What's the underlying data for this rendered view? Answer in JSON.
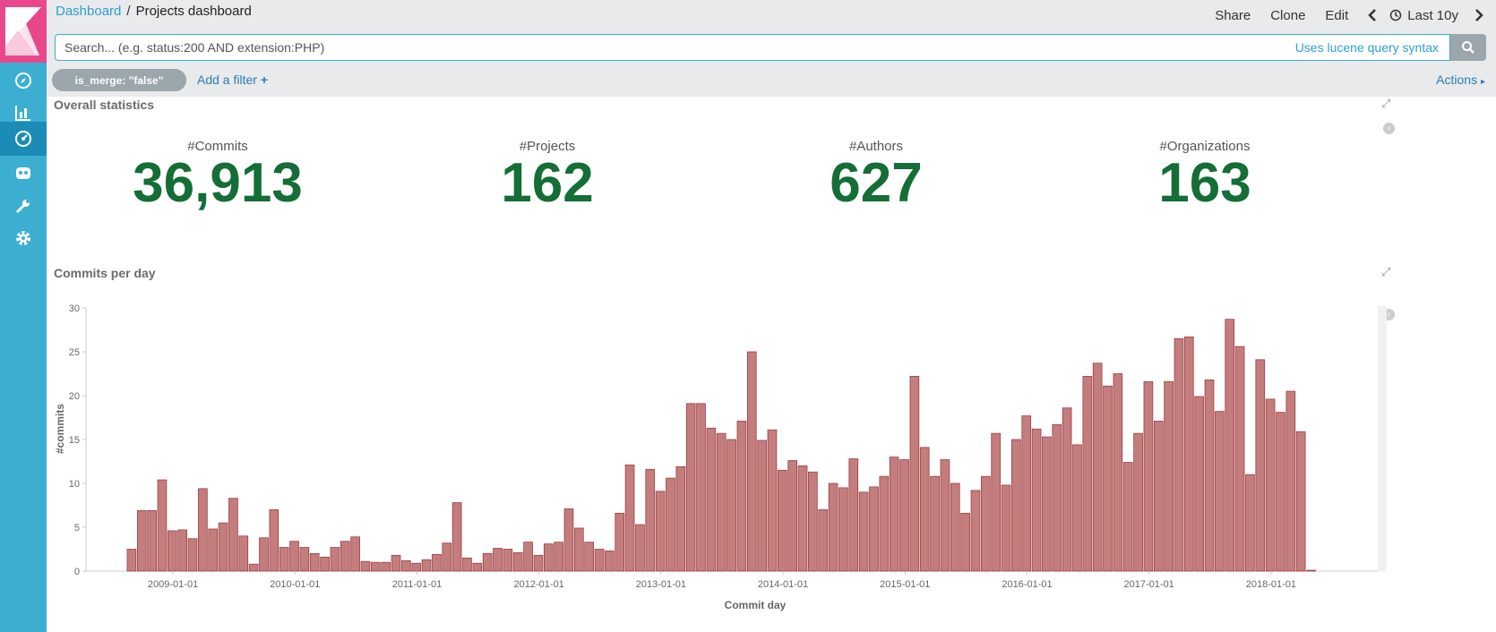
{
  "nav": {
    "items": [
      {
        "name": "discover",
        "icon": "compass-icon"
      },
      {
        "name": "visualize",
        "icon": "bar-chart-icon"
      },
      {
        "name": "dashboard",
        "icon": "gauge-icon",
        "active": true
      },
      {
        "name": "timelion",
        "icon": "shield-icon"
      },
      {
        "name": "dev-tools",
        "icon": "wrench-icon"
      },
      {
        "name": "management",
        "icon": "gear-icon"
      }
    ]
  },
  "breadcrumb": {
    "root": "Dashboard",
    "separator": "/",
    "current": "Projects dashboard"
  },
  "top_actions": {
    "share": "Share",
    "clone": "Clone",
    "edit": "Edit",
    "time_range": "Last 10y"
  },
  "search": {
    "placeholder": "Search... (e.g. status:200 AND extension:PHP)",
    "value": "",
    "syntax_link": "Uses lucene query syntax"
  },
  "filters": {
    "active": "is_merge: \"false\"",
    "add_label": "Add a filter",
    "actions_label": "Actions"
  },
  "overall": {
    "title": "Overall statistics",
    "metrics": [
      {
        "label": "#Commits",
        "value": "36,913"
      },
      {
        "label": "#Projects",
        "value": "162"
      },
      {
        "label": "#Authors",
        "value": "627"
      },
      {
        "label": "#Organizations",
        "value": "163"
      }
    ]
  },
  "commits_panel": {
    "title": "Commits per day"
  },
  "colors": {
    "sidebar": "#3caed2",
    "logo_bg": "#e8488b",
    "metric_value": "#146e36",
    "bar_fill": "#c47d7d",
    "bar_stroke": "#9c3d44"
  },
  "chart_data": {
    "type": "bar",
    "xlabel": "Commit day",
    "ylabel": "#commits",
    "ylim": [
      0,
      30
    ],
    "y_ticks": [
      0,
      5,
      10,
      15,
      20,
      25,
      30
    ],
    "x_tick_labels": [
      "2009-01-01",
      "2010-01-01",
      "2011-01-01",
      "2012-01-01",
      "2013-01-01",
      "2014-01-01",
      "2015-01-01",
      "2016-01-01",
      "2017-01-01",
      "2018-01-01"
    ],
    "grid": false,
    "x_start": "2008-09-01",
    "interval": "month",
    "values": [
      2.5,
      6.9,
      6.9,
      10.4,
      4.6,
      4.7,
      3.7,
      9.4,
      4.8,
      5.5,
      8.3,
      4.0,
      0.8,
      3.8,
      7.0,
      2.7,
      3.4,
      2.7,
      2.0,
      1.6,
      2.7,
      3.4,
      3.9,
      1.1,
      1.0,
      1.0,
      1.8,
      1.2,
      0.9,
      1.3,
      1.9,
      3.2,
      7.8,
      1.5,
      0.9,
      2.0,
      2.6,
      2.5,
      2.1,
      3.3,
      1.8,
      3.1,
      3.3,
      7.1,
      4.9,
      3.3,
      2.5,
      2.3,
      6.6,
      12.1,
      5.3,
      11.6,
      9.1,
      10.6,
      11.9,
      19.1,
      19.1,
      16.3,
      15.7,
      15.0,
      17.1,
      25.0,
      14.9,
      16.1,
      11.5,
      12.6,
      12.0,
      11.3,
      7.0,
      10.0,
      9.5,
      12.8,
      9.0,
      9.6,
      10.8,
      13.0,
      12.7,
      22.2,
      14.1,
      10.8,
      12.7,
      10.0,
      6.6,
      9.2,
      10.8,
      15.7,
      9.8,
      15.0,
      17.7,
      16.2,
      15.3,
      16.7,
      18.6,
      14.4,
      22.2,
      23.7,
      21.1,
      22.5,
      12.4,
      15.7,
      21.6,
      17.1,
      21.6,
      26.5,
      26.7,
      19.9,
      21.8,
      18.2,
      28.7,
      25.6,
      11.0,
      24.1,
      19.6,
      18.1,
      20.5,
      15.9,
      0.1
    ]
  }
}
